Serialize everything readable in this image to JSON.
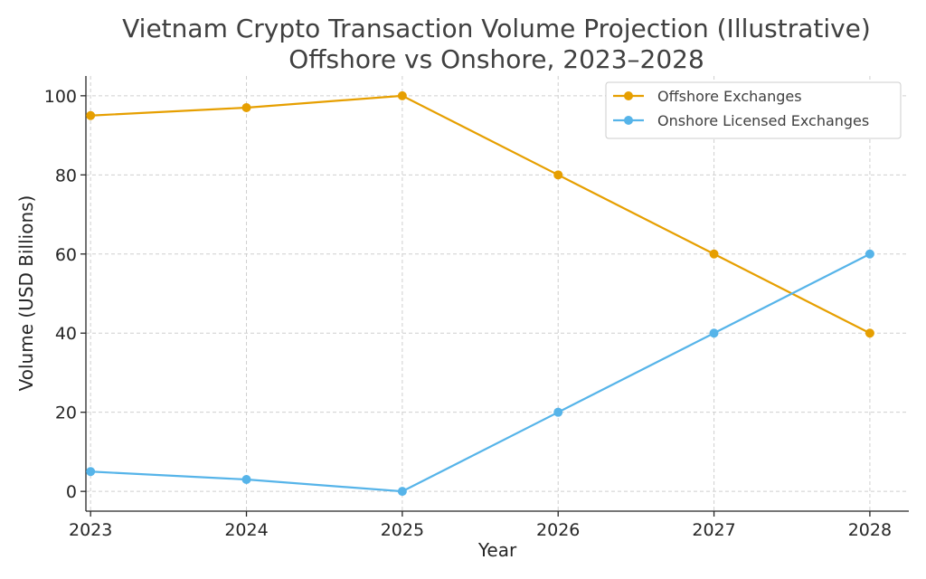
{
  "chart_data": {
    "type": "line",
    "title": "Vietnam Crypto Transaction Volume Projection (Illustrative)",
    "subtitle": "Offshore vs Onshore, 2023–2028",
    "xlabel": "Year",
    "ylabel": "Volume (USD Billions)",
    "x": [
      "2023",
      "2024",
      "2025",
      "2026",
      "2027",
      "2028"
    ],
    "xlim": [
      2022.97,
      2028.25
    ],
    "ylim": [
      -5,
      105
    ],
    "yticks": [
      0,
      20,
      40,
      60,
      80,
      100
    ],
    "grid": true,
    "legend_position": "top-right",
    "series": [
      {
        "name": "Offshore Exchanges",
        "color": "#E69F00",
        "values": [
          95,
          97,
          100,
          80,
          60,
          40
        ]
      },
      {
        "name": "Onshore Licensed Exchanges",
        "color": "#56B4E9",
        "values": [
          5,
          3,
          0,
          20,
          40,
          60
        ]
      }
    ]
  }
}
